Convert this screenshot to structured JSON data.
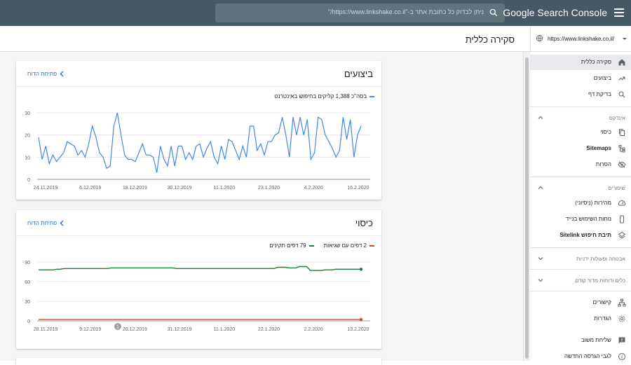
{
  "header": {
    "brand": "Google Search Console",
    "search_placeholder": "ניתן לבדוק כל כתובת אתר ב-\"https://www.linkshake.co.il/\""
  },
  "page": {
    "title": "סקירה כללית"
  },
  "property": {
    "url": "https://www.linkshake.co.il/"
  },
  "sidebar": {
    "top_items": [
      {
        "label": "סקירה כללית",
        "icon": "home-icon",
        "active": true
      },
      {
        "label": "ביצועים",
        "icon": "trending-up-icon"
      },
      {
        "label": "בדיקת דף",
        "icon": "search-icon"
      }
    ],
    "index_section": "אינדקס",
    "index_items": [
      {
        "label": "כיסוי",
        "icon": "copy-icon"
      },
      {
        "label": "Sitemaps",
        "icon": "sitemap-icon"
      },
      {
        "label": "הסרות",
        "icon": "eye-off-icon"
      }
    ],
    "enhancements_section": "שיפורים",
    "enhancement_items": [
      {
        "label": "מהירות (ניסיוני)",
        "icon": "speed-icon"
      },
      {
        "label": "נוחות השימוש בנייד",
        "icon": "phone-icon"
      },
      {
        "label": "תיבת חיפוש Sitelink",
        "icon": "layers-icon"
      }
    ],
    "security_section": "אבטחה ופעולות ידניות",
    "legacy_section": "כלים ודוחות מדור קודם",
    "bottom_items": [
      {
        "label": "קישורים",
        "icon": "links-icon"
      },
      {
        "label": "הגדרות",
        "icon": "settings-icon"
      }
    ],
    "footer_items": [
      {
        "label": "שליחת משוב",
        "icon": "feedback-icon"
      },
      {
        "label": "לגבי הגרסה החדשה",
        "icon": "info-icon"
      }
    ]
  },
  "performance_card": {
    "title": "ביצועים",
    "link": "פתיחת הדוח",
    "legend": "בסה\"כ 1,388 קליקים בחיפוש באינטרנט",
    "series_color": "#4285f4"
  },
  "coverage_card": {
    "title": "כיסוי",
    "link": "פתיחת הדוח",
    "legend_errors": "2 דפים עם שגיאות",
    "legend_valid": "79 דפים תקינים",
    "error_color": "#db4437",
    "valid_color": "#188038",
    "annotation": "1"
  },
  "chart_data": [
    {
      "type": "line",
      "title": "ביצועים",
      "xlabel": "",
      "ylabel": "",
      "ylim": [
        0,
        30
      ],
      "yticks": [
        0,
        10,
        20,
        30
      ],
      "xticks": [
        "24.11.2019",
        "6.12.2019",
        "18.12.2019",
        "30.12.2019",
        "11.1.2020",
        "23.1.2020",
        "4.2.2020",
        "16.2.2020"
      ],
      "grid": true,
      "series": [
        {
          "name": "בסה\"כ 1,388 קליקים בחיפוש באינטרנט",
          "values": [
            19,
            9,
            15,
            7,
            11,
            8,
            10,
            12,
            17,
            16,
            15,
            11,
            13,
            10,
            16,
            24,
            19,
            12,
            10,
            5,
            6,
            24,
            30,
            20,
            11,
            9,
            9,
            8,
            12,
            16,
            11,
            11,
            10,
            3,
            15,
            9,
            6,
            15,
            6,
            15,
            15,
            9,
            12,
            9,
            15,
            16,
            10,
            14,
            17,
            10,
            7,
            15,
            9,
            18,
            17,
            13,
            9,
            15,
            10,
            24,
            24,
            13,
            16,
            11,
            17,
            17,
            20,
            21,
            28,
            20,
            10,
            28,
            20,
            28,
            20,
            27,
            9,
            12,
            28,
            27,
            20,
            17,
            14,
            10,
            13,
            28,
            18,
            27,
            10,
            20,
            24
          ]
        }
      ]
    },
    {
      "type": "line",
      "title": "כיסוי",
      "xlabel": "",
      "ylabel": "",
      "ylim": [
        0,
        90
      ],
      "yticks": [
        0,
        30,
        60,
        90
      ],
      "xticks": [
        "28.11.2019",
        "9.12.2019",
        "20.12.2019",
        "31.12.2019",
        "11.1.2020",
        "22.1.2020",
        "2.2.2020",
        "13.2.2020"
      ],
      "grid": true,
      "series": [
        {
          "name": "79 דפים תקינים",
          "values": [
            78,
            78,
            78,
            78,
            78,
            79,
            79,
            80,
            80,
            80,
            80,
            80,
            80,
            80,
            80,
            80,
            80,
            80,
            80,
            80,
            81,
            81,
            81,
            81,
            81,
            81,
            81,
            81,
            81,
            81,
            81,
            81,
            81,
            81,
            81,
            81,
            81,
            81,
            80,
            80,
            80,
            80,
            80,
            80,
            80,
            80,
            80,
            80,
            80,
            80,
            80,
            80,
            80,
            80,
            80,
            80,
            80,
            80,
            80,
            80,
            80,
            80,
            80,
            80,
            80,
            80,
            82,
            82,
            82,
            81,
            81,
            81,
            83,
            83,
            83,
            77,
            77,
            77,
            77,
            78,
            78,
            78,
            79,
            79,
            79,
            79,
            79,
            79,
            79,
            79
          ]
        },
        {
          "name": "2 דפים עם שגיאות",
          "values": [
            2,
            2,
            2,
            2,
            2,
            2,
            2,
            2,
            2,
            2,
            2,
            2,
            2,
            2,
            2,
            2,
            2,
            2,
            2,
            2,
            2,
            2,
            2,
            2,
            2,
            2,
            2,
            2,
            2,
            2,
            2,
            2,
            2,
            2,
            2,
            2,
            2,
            2,
            2,
            2,
            2,
            2,
            2,
            2,
            2,
            2,
            2,
            2,
            2,
            2,
            2,
            2,
            2,
            2,
            2,
            2,
            2,
            2,
            2,
            2,
            2,
            2,
            2,
            2,
            2,
            2,
            2,
            2,
            2,
            2,
            2,
            2,
            2,
            2,
            2,
            2,
            2,
            2,
            2,
            2,
            2,
            2,
            2,
            2,
            2,
            2,
            2,
            2,
            2,
            2
          ]
        }
      ]
    }
  ]
}
